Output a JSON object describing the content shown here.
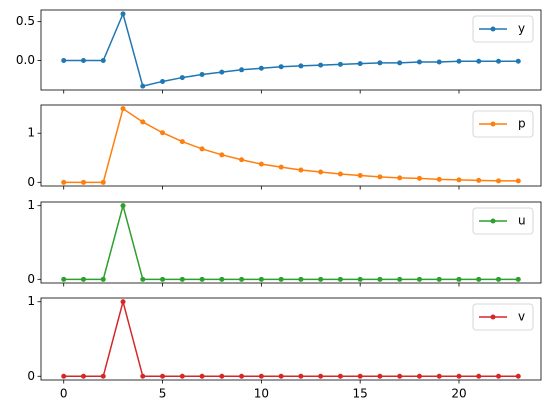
{
  "chart_data": [
    {
      "type": "line",
      "x": [
        0,
        1,
        2,
        3,
        4,
        5,
        6,
        7,
        8,
        9,
        10,
        11,
        12,
        13,
        14,
        15,
        16,
        17,
        18,
        19,
        20,
        21,
        22,
        23
      ],
      "series": [
        {
          "name": "y",
          "color": "#1f77b4",
          "values": [
            0,
            0,
            0,
            0.6,
            -0.33,
            -0.27,
            -0.22,
            -0.18,
            -0.15,
            -0.12,
            -0.1,
            -0.08,
            -0.07,
            -0.06,
            -0.05,
            -0.04,
            -0.03,
            -0.03,
            -0.02,
            -0.02,
            -0.01,
            -0.01,
            -0.01,
            -0.01
          ]
        }
      ],
      "xlim": [
        -1.15,
        24.15
      ],
      "xticks": [
        0,
        5,
        10,
        15,
        20
      ],
      "ylim": [
        -0.38,
        0.65
      ],
      "yticks": [
        {
          "value": 0,
          "label": "0.0"
        },
        {
          "value": 0.5,
          "label": "0.5"
        }
      ],
      "legend": "upper right"
    },
    {
      "type": "line",
      "x": [
        0,
        1,
        2,
        3,
        4,
        5,
        6,
        7,
        8,
        9,
        10,
        11,
        12,
        13,
        14,
        15,
        16,
        17,
        18,
        19,
        20,
        21,
        22,
        23
      ],
      "series": [
        {
          "name": "p",
          "color": "#ff7f0e",
          "values": [
            0,
            0,
            0,
            1.5,
            1.23,
            1.01,
            0.83,
            0.68,
            0.56,
            0.46,
            0.37,
            0.31,
            0.25,
            0.21,
            0.17,
            0.14,
            0.11,
            0.09,
            0.08,
            0.06,
            0.05,
            0.04,
            0.03,
            0.03
          ]
        }
      ],
      "xlim": [
        -1.15,
        24.15
      ],
      "xticks": [
        0,
        5,
        10,
        15,
        20
      ],
      "ylim": [
        -0.075,
        1.575
      ],
      "yticks": [
        0,
        1
      ],
      "legend": "upper right"
    },
    {
      "type": "line",
      "x": [
        0,
        1,
        2,
        3,
        4,
        5,
        6,
        7,
        8,
        9,
        10,
        11,
        12,
        13,
        14,
        15,
        16,
        17,
        18,
        19,
        20,
        21,
        22,
        23
      ],
      "series": [
        {
          "name": "u",
          "color": "#2ca02c",
          "values": [
            0,
            0,
            0,
            1,
            0,
            0,
            0,
            0,
            0,
            0,
            0,
            0,
            0,
            0,
            0,
            0,
            0,
            0,
            0,
            0,
            0,
            0,
            0,
            0
          ]
        }
      ],
      "xlim": [
        -1.15,
        24.15
      ],
      "xticks": [
        0,
        5,
        10,
        15,
        20
      ],
      "ylim": [
        -0.05,
        1.05
      ],
      "yticks": [
        0,
        1
      ],
      "legend": "upper right"
    },
    {
      "type": "line",
      "x": [
        0,
        1,
        2,
        3,
        4,
        5,
        6,
        7,
        8,
        9,
        10,
        11,
        12,
        13,
        14,
        15,
        16,
        17,
        18,
        19,
        20,
        21,
        22,
        23
      ],
      "series": [
        {
          "name": "v",
          "color": "#d62728",
          "values": [
            0,
            0,
            0,
            1,
            0,
            0,
            0,
            0,
            0,
            0,
            0,
            0,
            0,
            0,
            0,
            0,
            0,
            0,
            0,
            0,
            0,
            0,
            0,
            0
          ]
        }
      ],
      "xlim": [
        -1.15,
        24.15
      ],
      "xticks": [
        0,
        5,
        10,
        15,
        20
      ],
      "ylim": [
        -0.05,
        1.05
      ],
      "yticks": [
        0,
        1
      ],
      "legend": "upper right"
    }
  ]
}
